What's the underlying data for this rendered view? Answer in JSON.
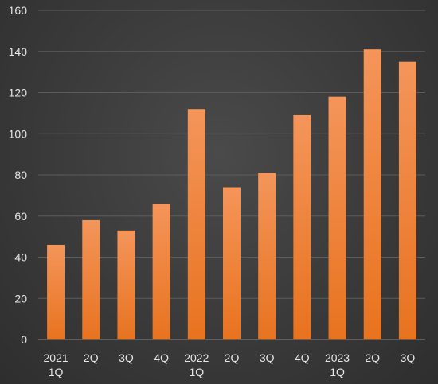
{
  "chart_data": {
    "type": "bar",
    "categories": [
      [
        "2021",
        "1Q"
      ],
      [
        "2Q"
      ],
      [
        "3Q"
      ],
      [
        "4Q"
      ],
      [
        "2022",
        "1Q"
      ],
      [
        "2Q"
      ],
      [
        "3Q"
      ],
      [
        "4Q"
      ],
      [
        "2023",
        "1Q"
      ],
      [
        "2Q"
      ],
      [
        "3Q"
      ]
    ],
    "values": [
      46,
      58,
      53,
      66,
      112,
      74,
      81,
      109,
      118,
      141,
      135
    ],
    "yticks": [
      0,
      20,
      40,
      60,
      80,
      100,
      120,
      140,
      160
    ],
    "ylim": [
      0,
      160
    ],
    "grid": true,
    "legend": "none",
    "colors": {
      "bar_top": "#f4955a",
      "bar_bottom": "#e8731f",
      "background": "#3a3a3a",
      "grid": "#5c5c5c",
      "text": "#e6e6e6"
    }
  }
}
